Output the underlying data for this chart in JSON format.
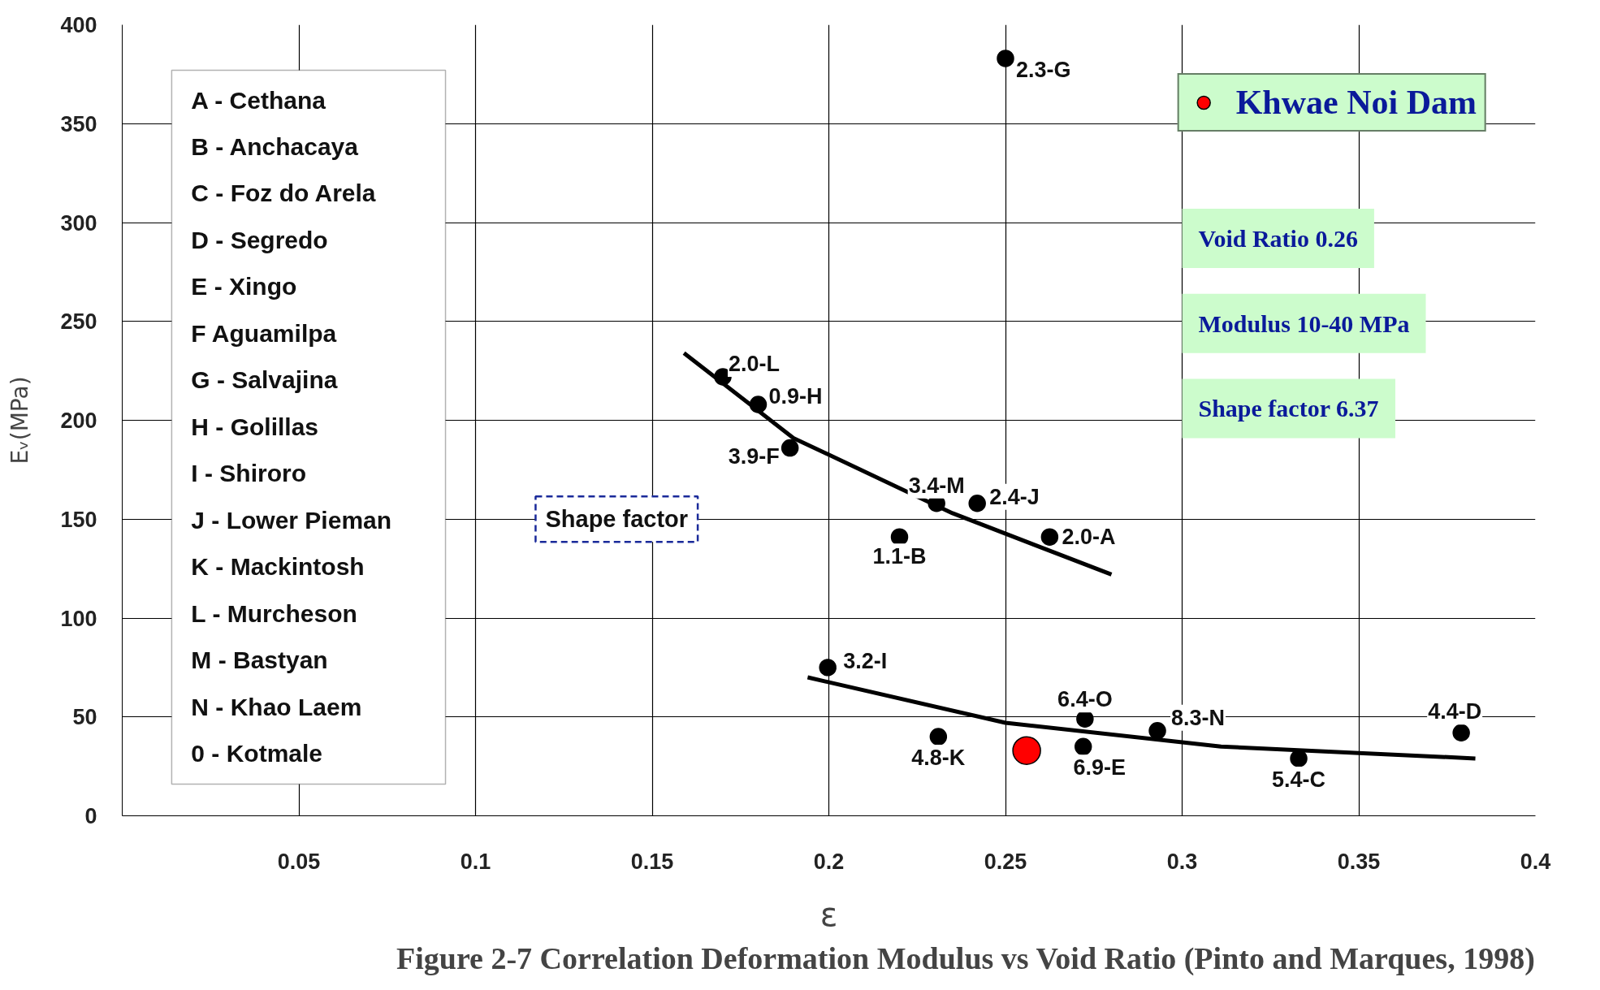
{
  "chart_data": {
    "type": "scatter",
    "title": "Figure 2-7 Correlation Deformation Modulus vs Void Ratio (Pinto and Marques, 1998)",
    "xlabel": "ε",
    "ylabel": "Eᵥ(MPa)",
    "xlim": [
      0,
      0.4
    ],
    "xticks": [
      0.05,
      0.1,
      0.15,
      0.2,
      0.25,
      0.3,
      0.35,
      0.4
    ],
    "ylim": [
      0,
      400
    ],
    "yticks": [
      0,
      50,
      100,
      150,
      200,
      250,
      300,
      350,
      400
    ],
    "grid": true,
    "legend": "top right",
    "series": [
      {
        "marker": "circle",
        "color": "#000000",
        "x": [
          0.25,
          0.17,
          0.18,
          0.189,
          0.2305,
          0.242,
          0.22,
          0.2625,
          0.1997,
          0.2725,
          0.293,
          0.231,
          0.272,
          0.333,
          0.379
        ],
        "values": [
          383,
          222,
          208,
          186,
          158,
          158,
          141,
          141,
          75,
          49,
          43,
          40,
          35,
          29,
          42
        ]
      },
      {
        "type": "line",
        "color": "#000000",
        "x": [
          0.159,
          0.19,
          0.235,
          0.28
        ],
        "values": [
          234,
          191,
          153,
          122
        ]
      },
      {
        "type": "line",
        "color": "#000000",
        "x": [
          0.194,
          0.25,
          0.311,
          0.383
        ],
        "values": [
          70,
          47,
          35,
          29
        ]
      },
      {
        "marker": "circle",
        "name": "Khwae Noi Dam",
        "color": "#ff0000",
        "x": [
          0.256
        ],
        "values": [
          33
        ]
      }
    ],
    "annotations": [
      "A - Cethana",
      "B - Anchacaya",
      "C - Foz do Arela",
      "D - Segredo",
      "E - Xingo",
      "F   Aguamilpa",
      "G - Salvajina",
      "H - Golillas",
      "I - Shiroro",
      "J - Lower Pieman",
      "K - Mackintosh",
      "L - Murcheson",
      "M - Bastyan",
      "N - Khao Laem",
      "0 - Kotmale",
      "Shape factor",
      "Void Ratio 0.26",
      "Modulus 10-40 MPa",
      "Shape factor 6.37",
      {
        "text": "2.3-G",
        "x": 0.25,
        "y": 383
      },
      {
        "text": "2.0-L",
        "x": 0.17,
        "y": 222
      },
      {
        "text": "0.9-H",
        "x": 0.18,
        "y": 208
      },
      {
        "text": "3.9-F",
        "x": 0.189,
        "y": 186
      },
      {
        "text": "3.4-M",
        "x": 0.2305,
        "y": 158
      },
      {
        "text": "2.4-J",
        "x": 0.242,
        "y": 158
      },
      {
        "text": "1.1-B",
        "x": 0.22,
        "y": 141
      },
      {
        "text": "2.0-A",
        "x": 0.2625,
        "y": 141
      },
      {
        "text": "3.2-I",
        "x": 0.1997,
        "y": 75
      },
      {
        "text": "6.4-O",
        "x": 0.2725,
        "y": 49
      },
      {
        "text": "8.3-N",
        "x": 0.293,
        "y": 43
      },
      {
        "text": "4.8-K",
        "x": 0.231,
        "y": 40
      },
      {
        "text": "6.9-E",
        "x": 0.272,
        "y": 35
      },
      {
        "text": "5.4-C",
        "x": 0.333,
        "y": 29
      },
      {
        "text": "4.4-D",
        "x": 0.379,
        "y": 42
      }
    ]
  }
}
